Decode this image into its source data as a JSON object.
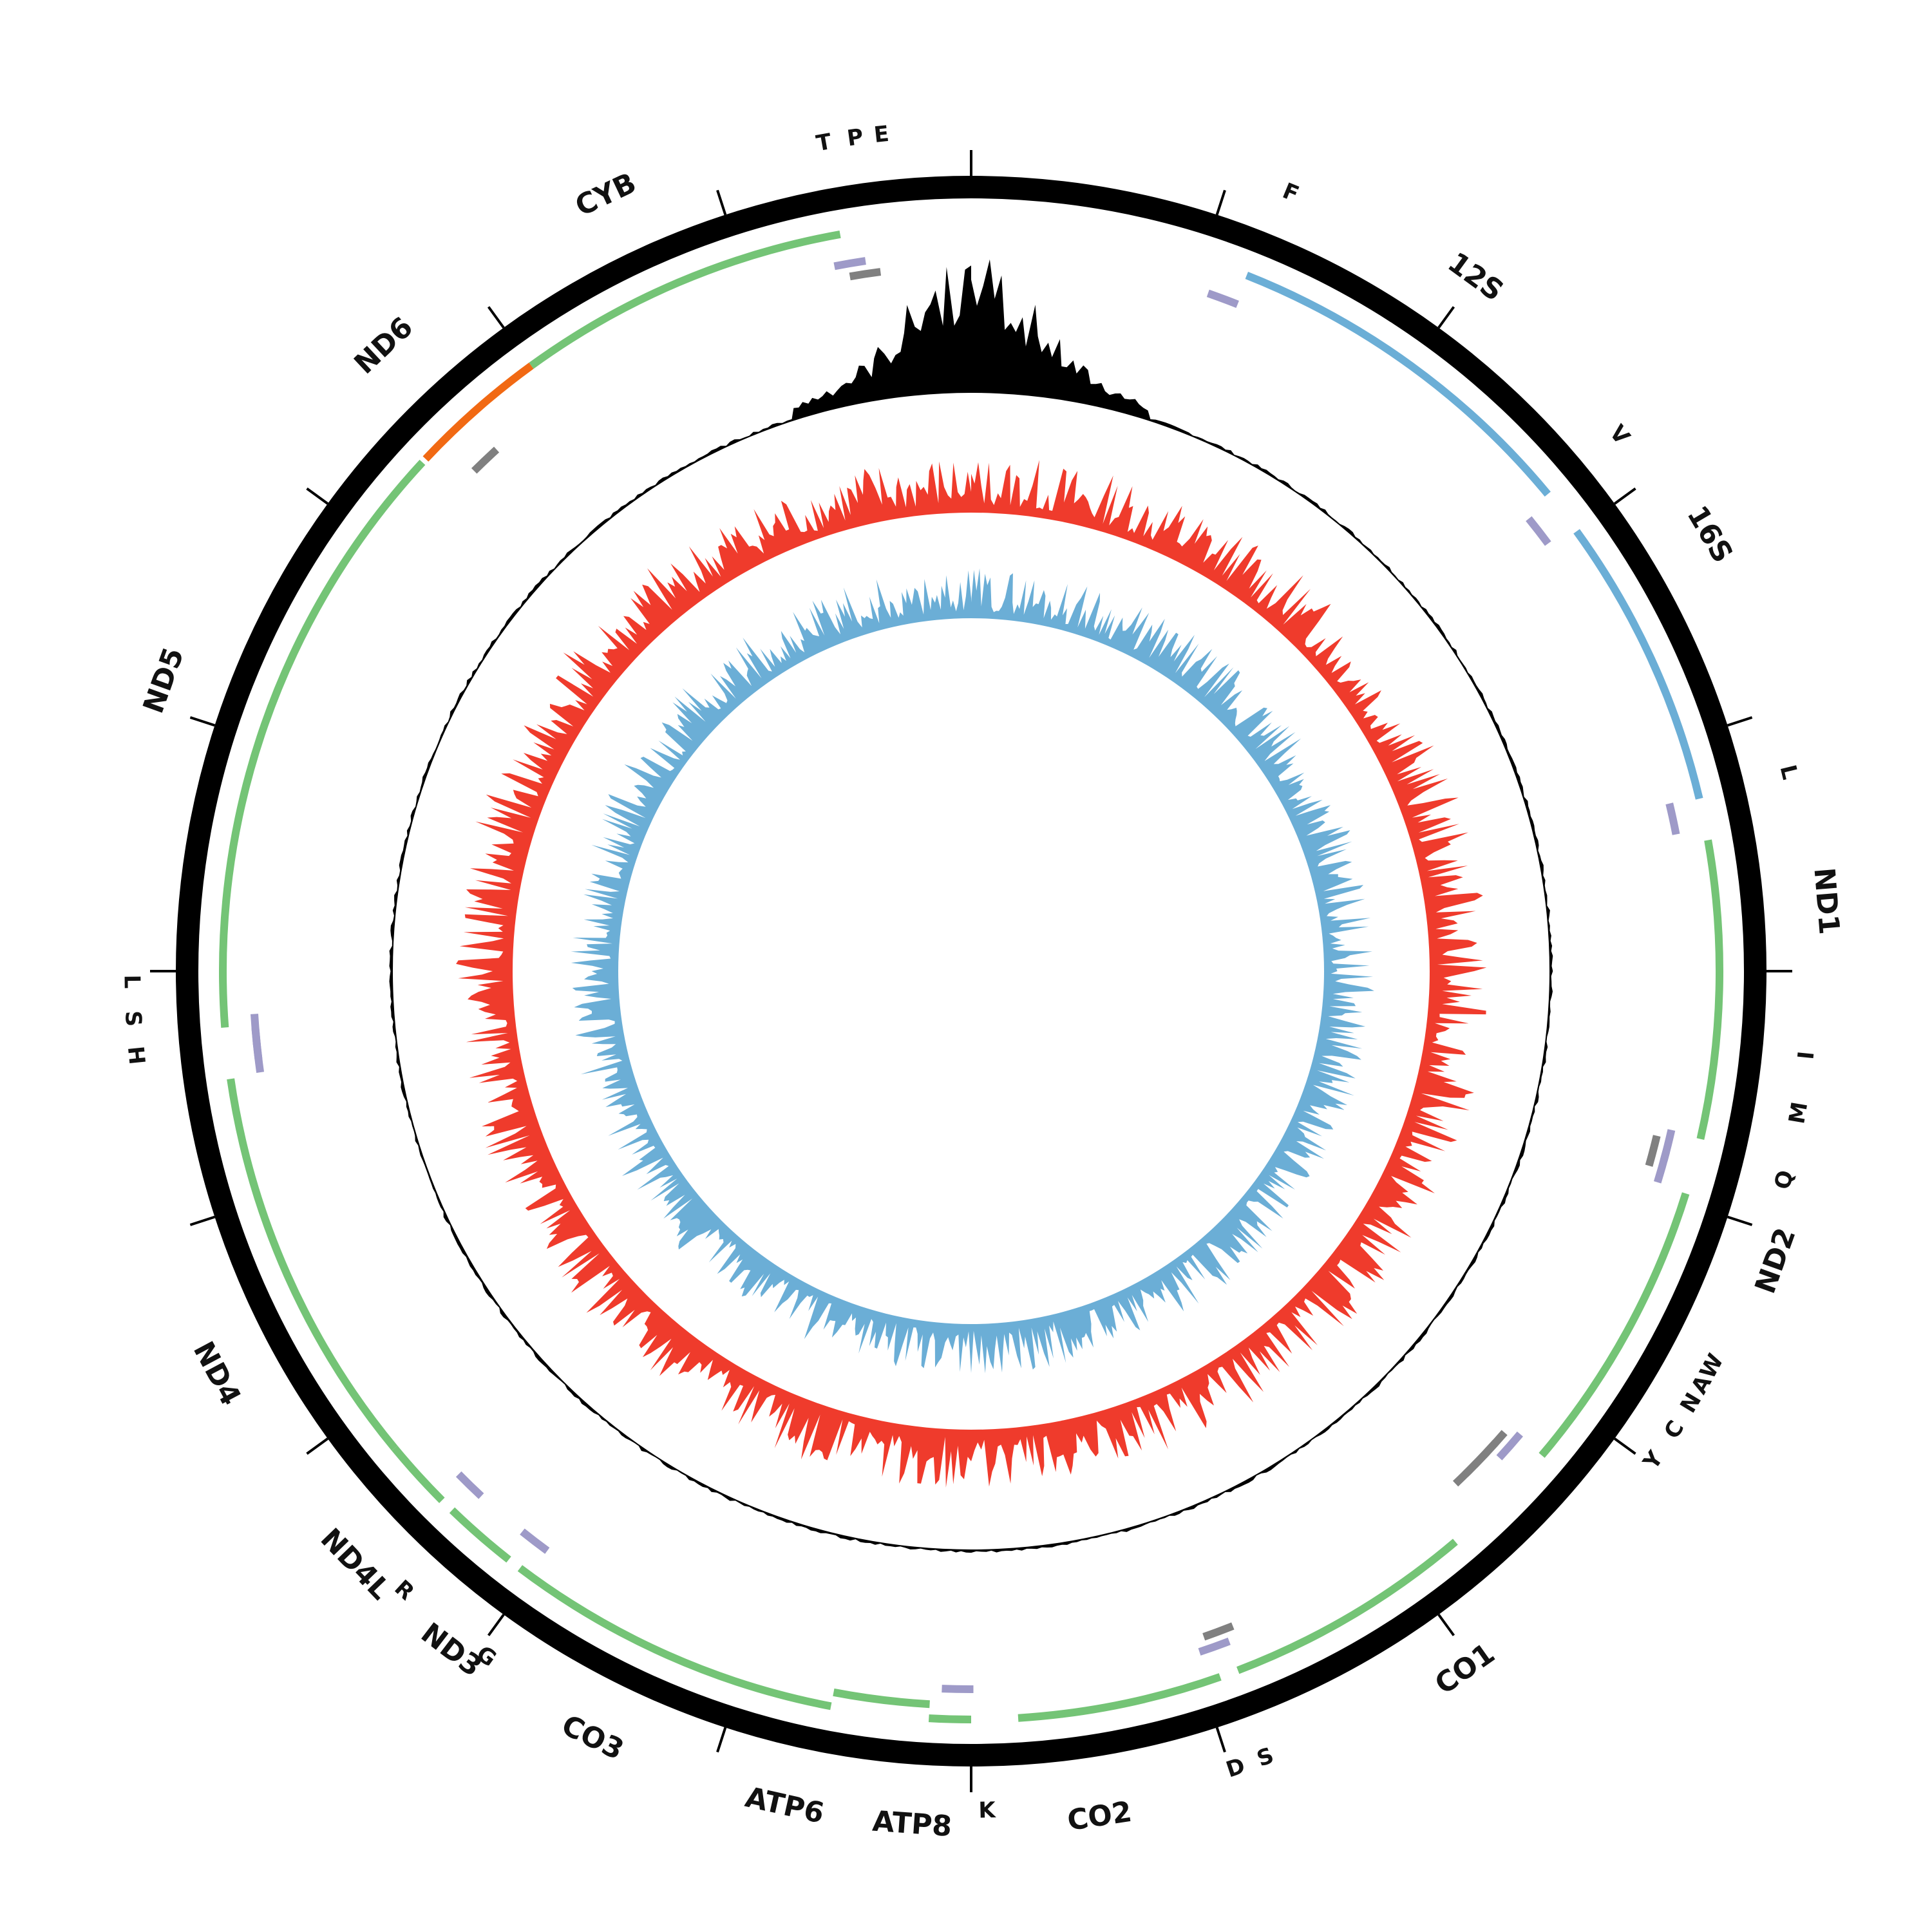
{
  "genes": [
    {
      "name": "12S",
      "kind": "rRNA",
      "start": 0.06,
      "end": 0.14,
      "track": 0,
      "label_pos": 0.1
    },
    {
      "name": "16S",
      "kind": "rRNA",
      "start": 0.15,
      "end": 0.213,
      "track": 0,
      "label_pos": 0.165
    },
    {
      "name": "ND1",
      "kind": "protein",
      "start": 0.222,
      "end": 0.286,
      "track": 0,
      "label_pos": 0.237
    },
    {
      "name": "ND2",
      "kind": "protein",
      "start": 0.298,
      "end": 0.362,
      "track": 0,
      "label_pos": 0.305
    },
    {
      "name": "CO1",
      "kind": "protein",
      "start": 0.388,
      "end": 0.442,
      "track": 0,
      "label_pos": 0.402
    },
    {
      "name": "CO2",
      "kind": "protein",
      "start": 0.446,
      "end": 0.49,
      "track": 0,
      "label_pos": 0.476
    },
    {
      "name": "ATP8",
      "kind": "protein",
      "start": 0.5,
      "end": 0.509,
      "track": 0,
      "label_pos": 0.511
    },
    {
      "name": "ATP6",
      "kind": "protein",
      "start": 0.509,
      "end": 0.53,
      "track": 1,
      "label_pos": 0.535
    },
    {
      "name": "CO3",
      "kind": "protein",
      "start": 0.53,
      "end": 0.603,
      "track": 0,
      "label_pos": 0.573
    },
    {
      "name": "ND3",
      "kind": "protein",
      "start": 0.606,
      "end": 0.622,
      "track": 0,
      "label_pos": 0.604
    },
    {
      "name": "ND4L",
      "kind": "protein",
      "start": 0.625,
      "end": 0.64,
      "track": 0,
      "label_pos": 0.628
    },
    {
      "name": "ND4",
      "kind": "protein",
      "start": 0.64,
      "end": 0.727,
      "track": 0,
      "label_pos": 0.672
    },
    {
      "name": "ND5",
      "kind": "protein",
      "start": 0.738,
      "end": 0.869,
      "track": 0,
      "label_pos": 0.805
    },
    {
      "name": "ND6",
      "kind": "protein-minus",
      "start": 0.87,
      "end": 0.9,
      "track": 0,
      "label_pos": 0.88
    },
    {
      "name": "CYB",
      "kind": "protein",
      "start": 0.9,
      "end": 0.972,
      "track": 0,
      "label_pos": 0.93
    }
  ],
  "trnas": [
    {
      "name": "F",
      "pos": 0.057,
      "strand": "plus",
      "label_pos": 0.062
    },
    {
      "name": "V",
      "pos": 0.145,
      "strand": "plus",
      "label_pos": 0.14
    },
    {
      "name": "L",
      "pos": 0.216,
      "strand": "plus",
      "label_pos": 0.212
    },
    {
      "name": "I",
      "pos": 0.289,
      "strand": "plus",
      "label_pos": 0.266
    },
    {
      "name": "Q",
      "pos": 0.291,
      "strand": "minus",
      "label_pos": 0.29
    },
    {
      "name": "M",
      "pos": 0.294,
      "strand": "plus",
      "label_pos": 0.277
    },
    {
      "name": "W",
      "pos": 0.365,
      "strand": "plus",
      "label_pos": 0.328
    },
    {
      "name": "A",
      "pos": 0.367,
      "strand": "minus",
      "label_pos": 0.332
    },
    {
      "name": "N",
      "pos": 0.37,
      "strand": "minus",
      "label_pos": 0.336
    },
    {
      "name": "C",
      "pos": 0.373,
      "strand": "minus",
      "label_pos": 0.342
    },
    {
      "name": "Y",
      "pos": 0.376,
      "strand": "minus",
      "label_pos": 0.349
    },
    {
      "name": "S",
      "pos": 0.443,
      "strand": "minus",
      "label_pos": 0.443
    },
    {
      "name": "D",
      "pos": 0.445,
      "strand": "plus",
      "label_pos": 0.449
    },
    {
      "name": "K",
      "pos": 0.503,
      "strand": "plus",
      "label_pos": 0.497
    },
    {
      "name": "G",
      "pos": 0.604,
      "strand": "plus",
      "label_pos": 0.598
    },
    {
      "name": "R",
      "pos": 0.623,
      "strand": "plus",
      "label_pos": 0.618
    },
    {
      "name": "H",
      "pos": 0.731,
      "strand": "plus",
      "label_pos": 0.734
    },
    {
      "name": "S",
      "pos": 0.734,
      "strand": "plus",
      "label_pos": 0.741
    },
    {
      "name": "L",
      "pos": 0.737,
      "strand": "plus",
      "label_pos": 0.748
    },
    {
      "name": "T",
      "pos": 0.973,
      "strand": "plus",
      "label_pos": 0.972
    },
    {
      "name": "P",
      "pos": 0.976,
      "strand": "minus",
      "label_pos": 0.978
    },
    {
      "name": "E",
      "pos": 0.879,
      "strand": "minus",
      "label_pos": 0.983
    }
  ],
  "colors": {
    "protein": "#74c476",
    "protein_minus": "#f16913",
    "rRNA": "#6baed6",
    "trna_plus": "#9e9ac8",
    "trna_minus": "#808080",
    "ideogram": "#000000",
    "coverage": "#000000",
    "gc_skew": "#ef3b2c",
    "at_skew": "#6baed6",
    "axis_line": "#000000"
  },
  "ticks": [
    0,
    0.05,
    0.1,
    0.15,
    0.2,
    0.25,
    0.3,
    0.35,
    0.4,
    0.45,
    0.5,
    0.55,
    0.6,
    0.65,
    0.7,
    0.75,
    0.8,
    0.85,
    0.9,
    0.95
  ],
  "coverage_peak_start": 0.965,
  "coverage_peak_end": 0.025
}
